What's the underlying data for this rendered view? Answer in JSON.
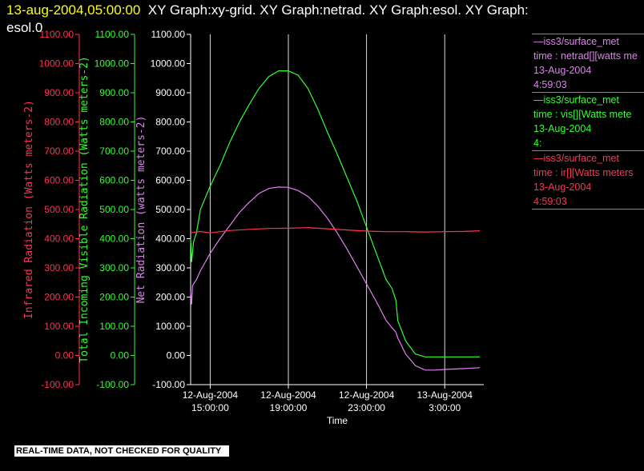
{
  "header": {
    "date": "13-aug-2004,05:00:00",
    "rest": "XY Graph:xy-grid.  XY Graph:netrad.  XY Graph:esol.  XY Graph:",
    "rest2": "esol.0"
  },
  "notice": "REAL-TIME DATA, NOT CHECKED FOR QUALITY",
  "legend": [
    {
      "line1": "iss3/surface_met",
      "line2": "time : netrad[][watts me",
      "line3": "13-Aug-2004",
      "line4": "4:59:03",
      "color": "#e080f0"
    },
    {
      "line1": "iss3/surface_met",
      "line2": "time : vis[][Watts mete",
      "line3": "13-Aug-2004",
      "line4": "4:",
      "color": "#33ff33"
    },
    {
      "line1": "iss3/surface_met",
      "line2": "time : ir[][Watts meters",
      "line3": "13-Aug-2004",
      "line4": "4:59:03",
      "color": "#ff3355"
    }
  ],
  "chart_data": {
    "type": "line",
    "xlabel": "Time",
    "x_ticks": [
      {
        "hours": 15,
        "l1": "12-Aug-2004",
        "l2": "15:00:00"
      },
      {
        "hours": 19,
        "l1": "12-Aug-2004",
        "l2": "19:00:00"
      },
      {
        "hours": 23,
        "l1": "12-Aug-2004",
        "l2": "23:00:00"
      },
      {
        "hours": 27,
        "l1": "13-Aug-2004",
        "l2": "3:00:00"
      }
    ],
    "xlim_hours": [
      14,
      29
    ],
    "axes": [
      {
        "name": "Infrared Radiation (Watts meters-2)",
        "color": "#ff3355",
        "ylim": [
          -100,
          1100
        ]
      },
      {
        "name": "Total Incoming Visible Radiation (Watts meters-2)",
        "color": "#33ff33",
        "ylim": [
          -100,
          1100
        ]
      },
      {
        "name": "Net Radiation (watts meters-2)",
        "color": "#e080f0",
        "ylim": [
          -100,
          1100
        ]
      }
    ],
    "y_ticks": [
      "-100.00",
      "0.00",
      "100.00",
      "200.00",
      "300.00",
      "400.00",
      "500.00",
      "600.00",
      "700.00",
      "800.00",
      "900.00",
      "1000.00",
      "1100.00"
    ],
    "series": [
      {
        "name": "netrad",
        "color": "#e080f0",
        "hours": [
          14.0,
          14.05,
          14.1,
          14.3,
          14.5,
          15.0,
          15.5,
          16.0,
          16.5,
          17.0,
          17.5,
          18.0,
          18.5,
          19.0,
          19.5,
          20.0,
          20.5,
          21.0,
          21.5,
          22.0,
          22.5,
          23.0,
          23.5,
          24.0,
          24.3,
          24.5,
          24.6,
          25.0,
          25.5,
          26.0,
          26.5,
          27.0,
          28.0,
          28.8
        ],
        "values": [
          220,
          175,
          240,
          260,
          290,
          350,
          400,
          445,
          490,
          525,
          555,
          572,
          577,
          576,
          565,
          545,
          512,
          470,
          420,
          365,
          305,
          245,
          185,
          120,
          95,
          80,
          60,
          5,
          -35,
          -50,
          -50,
          -48,
          -45,
          -42
        ]
      },
      {
        "name": "vis",
        "color": "#33ff33",
        "hours": [
          14.0,
          14.05,
          14.15,
          14.3,
          14.5,
          15.0,
          15.5,
          16.0,
          16.5,
          17.0,
          17.5,
          18.0,
          18.5,
          19.0,
          19.5,
          20.0,
          20.5,
          21.0,
          21.5,
          22.0,
          22.5,
          23.0,
          23.5,
          24.0,
          24.3,
          24.5,
          24.6,
          25.0,
          25.5,
          26.0,
          26.5,
          27.0,
          28.0,
          28.8
        ],
        "values": [
          400,
          320,
          390,
          420,
          500,
          580,
          650,
          730,
          800,
          860,
          915,
          955,
          975,
          975,
          960,
          915,
          845,
          765,
          690,
          610,
          530,
          440,
          350,
          260,
          230,
          190,
          120,
          50,
          5,
          -5,
          -5,
          -5,
          -5,
          -5
        ]
      },
      {
        "name": "ir",
        "color": "#ff3355",
        "hours": [
          14.0,
          14.5,
          15.0,
          16.0,
          17.0,
          18.0,
          19.0,
          20.0,
          21.0,
          22.0,
          23.0,
          24.0,
          25.0,
          26.0,
          27.0,
          28.0,
          28.8
        ],
        "values": [
          420,
          425,
          420,
          428,
          432,
          435,
          436,
          438,
          434,
          430,
          426,
          424,
          424,
          423,
          424,
          425,
          427
        ]
      }
    ]
  }
}
